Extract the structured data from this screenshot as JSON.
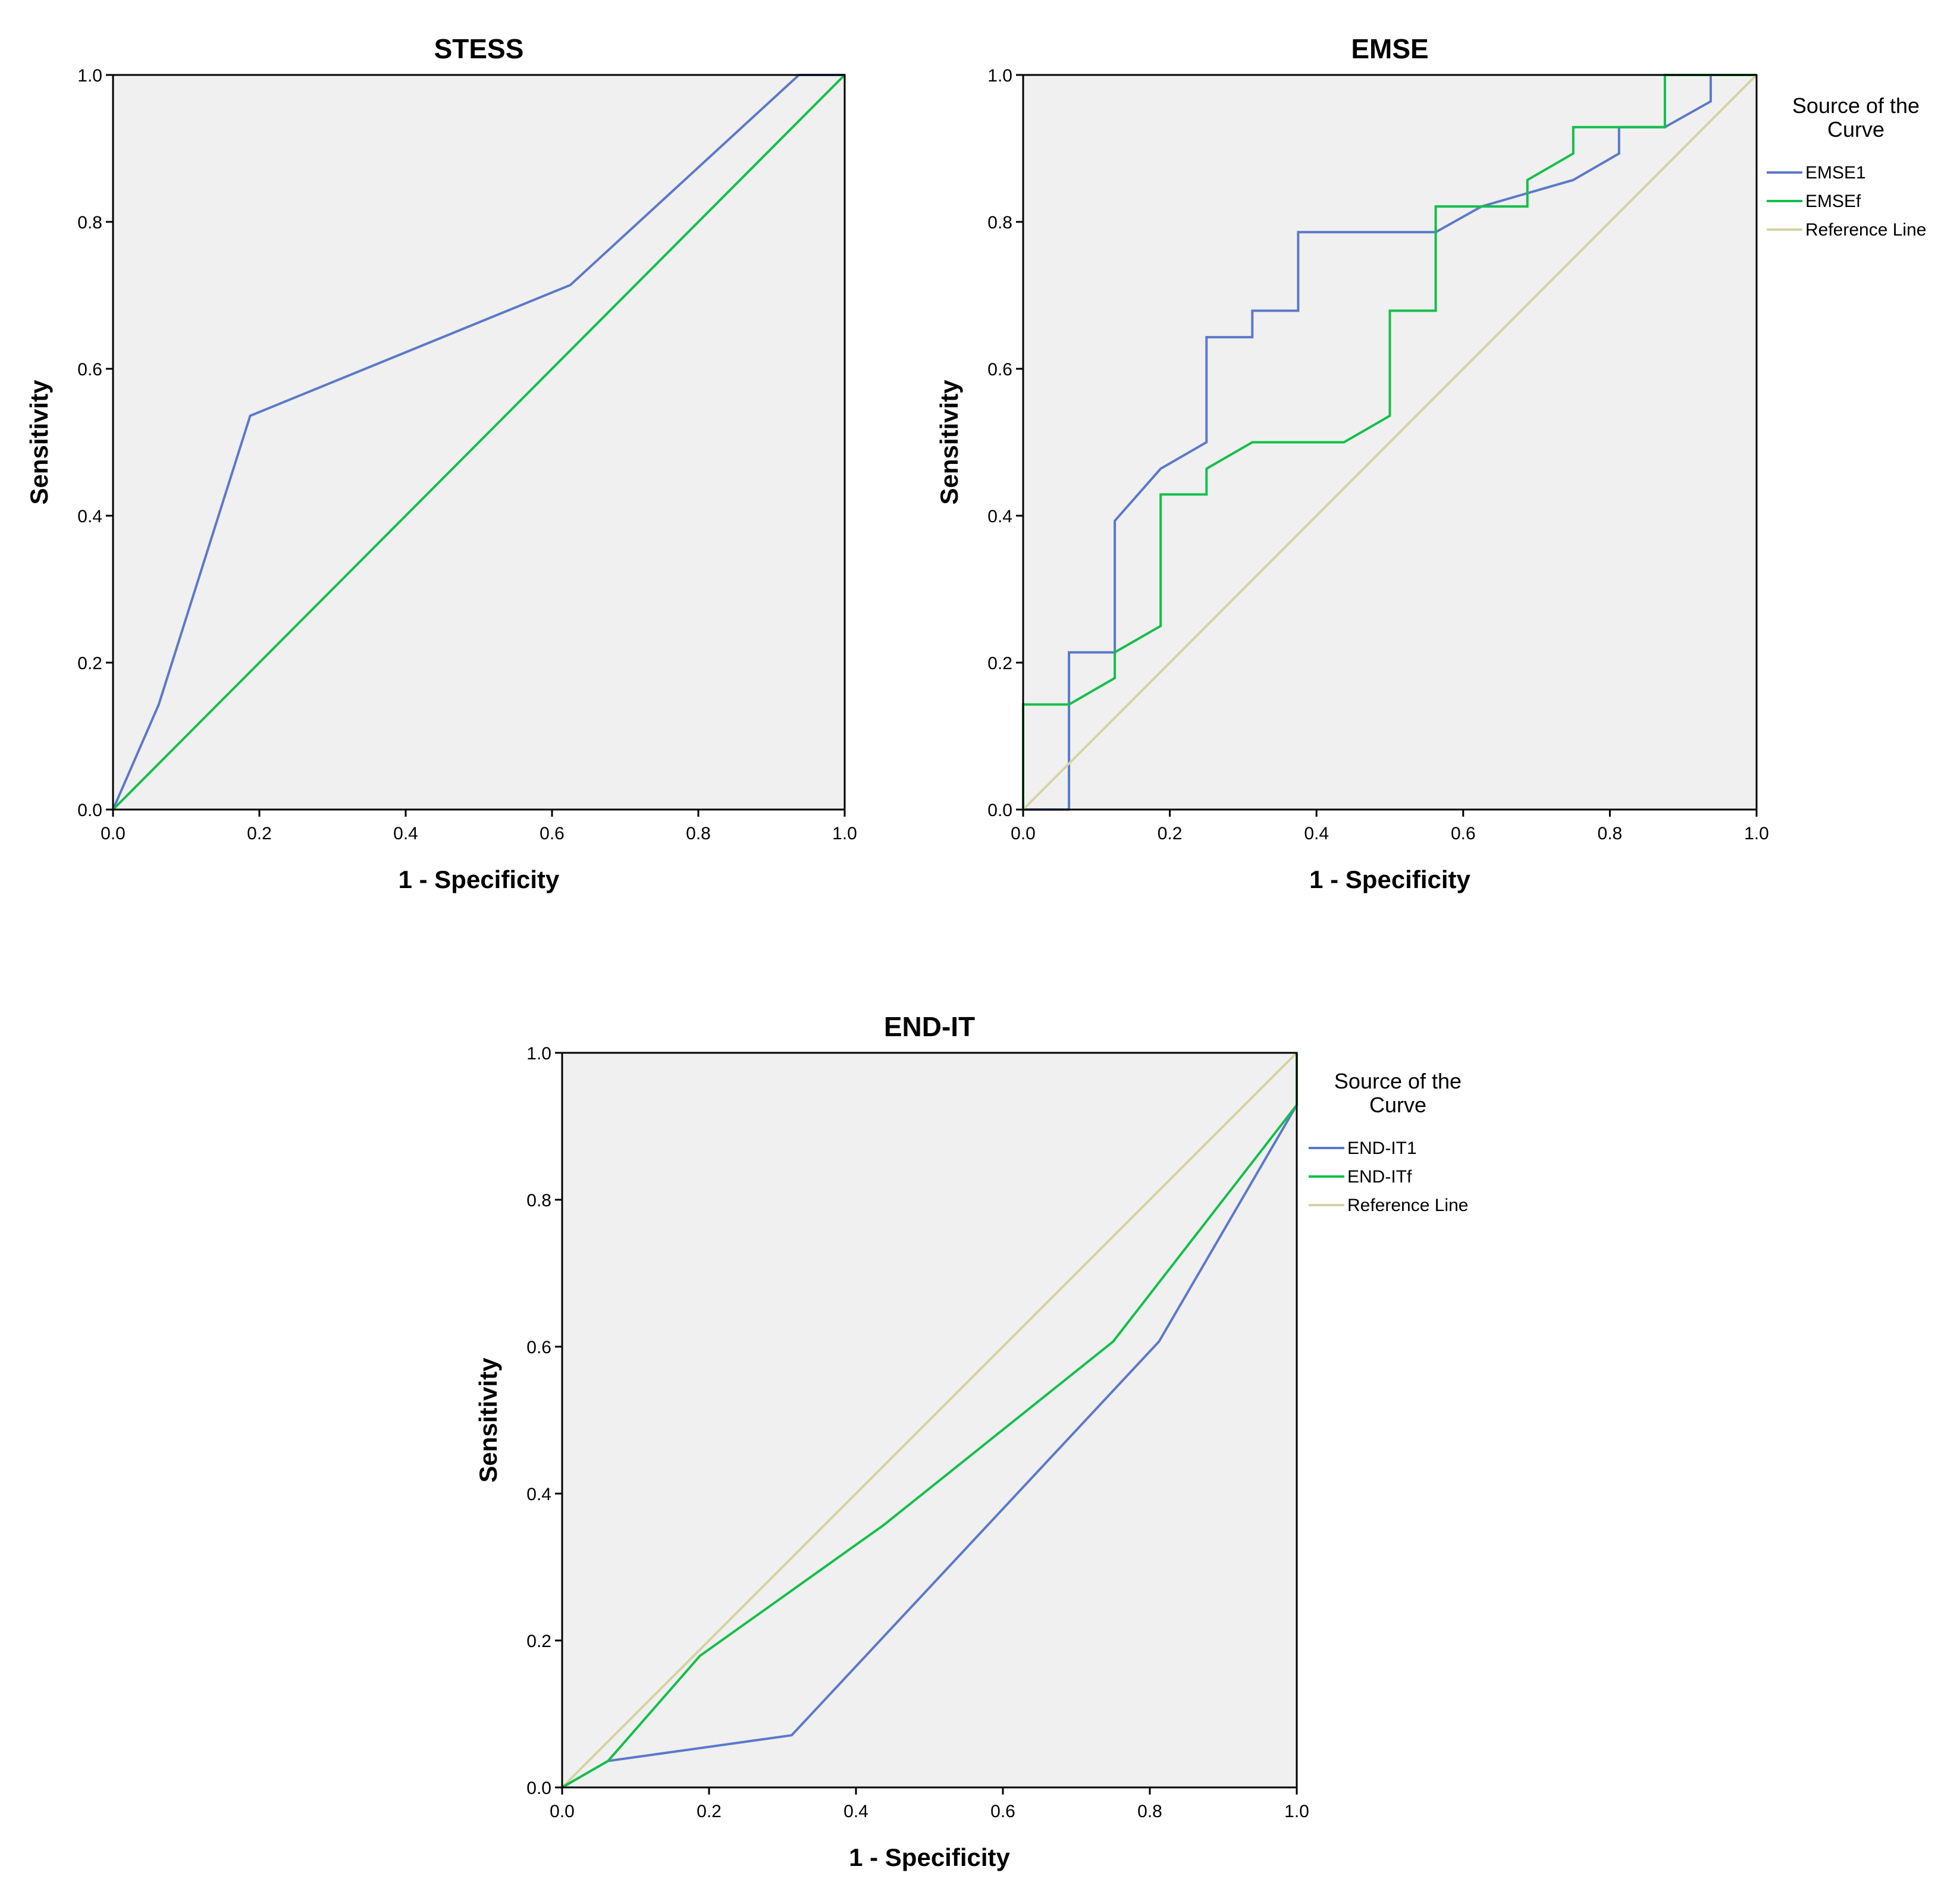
{
  "chart_data": [
    {
      "type": "line",
      "title": "STESS",
      "xlabel": "1 - Specificity",
      "ylabel": "Sensitivity",
      "xlim": [
        0,
        1
      ],
      "ylim": [
        0,
        1
      ],
      "xticks": [
        "0.0",
        "0.2",
        "0.4",
        "0.6",
        "0.8",
        "1.0"
      ],
      "yticks": [
        "0.0",
        "0.2",
        "0.4",
        "0.6",
        "0.8",
        "1.0"
      ],
      "grid": false,
      "legend": null,
      "series": [
        {
          "color": "#5b79c9",
          "x": [
            0,
            0.0625,
            0.1875,
            0.625,
            0.9375,
            1
          ],
          "y": [
            0,
            0.143,
            0.536,
            0.714,
            1,
            1
          ]
        },
        {
          "color": "#14bf4a",
          "x": [
            0,
            1
          ],
          "y": [
            0,
            1
          ]
        }
      ]
    },
    {
      "type": "line",
      "title": "EMSE",
      "xlabel": "1 - Specificity",
      "ylabel": "Sensitivity",
      "xlim": [
        0,
        1
      ],
      "ylim": [
        0,
        1
      ],
      "xticks": [
        "0.0",
        "0.2",
        "0.4",
        "0.6",
        "0.8",
        "1.0"
      ],
      "yticks": [
        "0.0",
        "0.2",
        "0.4",
        "0.6",
        "0.8",
        "1.0"
      ],
      "grid": false,
      "legend": {
        "title_lines": [
          "Source of the",
          "Curve"
        ],
        "placement": "right"
      },
      "series": [
        {
          "name": "EMSE1",
          "color": "#5b79c9",
          "x": [
            0,
            0.0625,
            0.0625,
            0.125,
            0.125,
            0.1875,
            0.25,
            0.25,
            0.3125,
            0.3125,
            0.375,
            0.375,
            0.5625,
            0.625,
            0.75,
            0.8125,
            0.8125,
            0.875,
            0.9375,
            0.9375,
            1
          ],
          "y": [
            0,
            0,
            0.214,
            0.214,
            0.393,
            0.464,
            0.5,
            0.643,
            0.643,
            0.679,
            0.679,
            0.786,
            0.786,
            0.821,
            0.857,
            0.893,
            0.929,
            0.929,
            0.964,
            1,
            1
          ]
        },
        {
          "name": "EMSEf",
          "color": "#14bf4a",
          "x": [
            0,
            0,
            0.0625,
            0.125,
            0.125,
            0.1875,
            0.1875,
            0.25,
            0.25,
            0.3125,
            0.4375,
            0.5,
            0.5,
            0.5625,
            0.5625,
            0.6875,
            0.6875,
            0.75,
            0.75,
            0.875,
            0.875,
            1
          ],
          "y": [
            0,
            0.143,
            0.143,
            0.179,
            0.214,
            0.25,
            0.429,
            0.429,
            0.464,
            0.5,
            0.5,
            0.536,
            0.679,
            0.679,
            0.821,
            0.821,
            0.857,
            0.893,
            0.929,
            0.929,
            1,
            1
          ]
        },
        {
          "name": "Reference Line",
          "color": "#d6d2a4",
          "x": [
            0,
            1
          ],
          "y": [
            0,
            1
          ]
        }
      ]
    },
    {
      "type": "line",
      "title": "END-IT",
      "xlabel": "1 - Specificity",
      "ylabel": "Sensitivity",
      "xlim": [
        0,
        1
      ],
      "ylim": [
        0,
        1
      ],
      "xticks": [
        "0.0",
        "0.2",
        "0.4",
        "0.6",
        "0.8",
        "1.0"
      ],
      "yticks": [
        "0.0",
        "0.2",
        "0.4",
        "0.6",
        "0.8",
        "1.0"
      ],
      "grid": false,
      "legend": {
        "title_lines": [
          "Source of the",
          "Curve"
        ],
        "placement": "right"
      },
      "series": [
        {
          "name": "Reference Line",
          "color": "#d6d2a4",
          "x": [
            0,
            1
          ],
          "y": [
            0,
            1
          ]
        },
        {
          "name": "END-IT1",
          "color": "#5b79c9",
          "x": [
            0,
            0.0625,
            0.3125,
            0.8125,
            1,
            1
          ],
          "y": [
            0,
            0.036,
            0.071,
            0.607,
            0.929,
            1
          ]
        },
        {
          "name": "END-ITf",
          "color": "#14bf4a",
          "x": [
            0,
            0.0625,
            0.1875,
            0.4375,
            0.75,
            1,
            1
          ],
          "y": [
            0,
            0.036,
            0.179,
            0.357,
            0.607,
            0.929,
            1
          ]
        }
      ]
    }
  ]
}
